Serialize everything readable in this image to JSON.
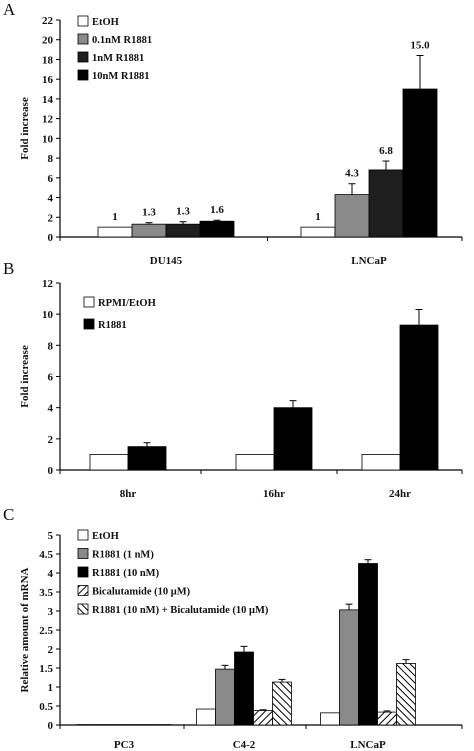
{
  "colors": {
    "white": "#ffffff",
    "gray": "#8a8a8a",
    "dark": "#1e1e1e",
    "black": "#000000"
  },
  "chart_data": [
    {
      "panel": "A",
      "type": "bar",
      "ylabel": "Fold increase",
      "ylim": [
        0,
        22
      ],
      "yticks": [
        0,
        2,
        4,
        6,
        8,
        10,
        12,
        14,
        16,
        18,
        20,
        22
      ],
      "categories": [
        "DU145",
        "LNCaP"
      ],
      "legend_position": "top-left",
      "series": [
        {
          "name": "EtOH",
          "fill": "white",
          "values": [
            1,
            1
          ],
          "errors": [
            0,
            0
          ],
          "labels": [
            "1",
            "1"
          ]
        },
        {
          "name": "0.1nM R1881",
          "fill": "gray",
          "values": [
            1.3,
            4.3
          ],
          "errors": [
            0.15,
            1.1
          ],
          "labels": [
            "1.3",
            "4.3"
          ]
        },
        {
          "name": "1nM R1881",
          "fill": "dark",
          "values": [
            1.3,
            6.8
          ],
          "errors": [
            0.25,
            0.9
          ],
          "labels": [
            "1.3",
            "6.8"
          ]
        },
        {
          "name": "10nM R1881",
          "fill": "black",
          "values": [
            1.6,
            15.0
          ],
          "errors": [
            0.1,
            3.4
          ],
          "labels": [
            "1.6",
            "15.0"
          ]
        }
      ]
    },
    {
      "panel": "B",
      "type": "bar",
      "ylabel": "Fold increase",
      "ylim": [
        0,
        12
      ],
      "yticks": [
        0,
        2,
        4,
        6,
        8,
        10,
        12
      ],
      "categories": [
        "8hr",
        "16hr",
        "24hr"
      ],
      "legend_position": "top-left",
      "series": [
        {
          "name": "RPMI/EtOH",
          "fill": "white",
          "values": [
            1,
            1,
            1
          ],
          "errors": [
            0,
            0,
            0
          ]
        },
        {
          "name": "R1881",
          "fill": "black",
          "values": [
            1.5,
            4.0,
            9.3
          ],
          "errors": [
            0.25,
            0.45,
            1.0
          ]
        }
      ]
    },
    {
      "panel": "C",
      "type": "bar",
      "ylabel": "Relative amount of mRNA",
      "ylim": [
        0,
        5
      ],
      "yticks": [
        0,
        0.5,
        1,
        1.5,
        2,
        2.5,
        3,
        3.5,
        4,
        4.5,
        5
      ],
      "categories": [
        "PC3",
        "C4-2",
        "LNCaP"
      ],
      "legend_position": "top-left",
      "series": [
        {
          "name": "EtOH",
          "fill": "white",
          "values": [
            0.01,
            0.42,
            0.32
          ],
          "errors": [
            0,
            0,
            0
          ]
        },
        {
          "name": "R1881 (1 nM)",
          "fill": "gray",
          "values": [
            0.01,
            1.47,
            3.03
          ],
          "errors": [
            0,
            0.1,
            0.15
          ]
        },
        {
          "name": "R1881 (10 nM)",
          "fill": "black",
          "values": [
            0.01,
            1.92,
            4.25
          ],
          "errors": [
            0,
            0.15,
            0.1
          ]
        },
        {
          "name": "Bicalutamide (10 μM)",
          "fill": "hatch-fwd",
          "values": [
            0.01,
            0.38,
            0.34
          ],
          "errors": [
            0,
            0.02,
            0.03
          ]
        },
        {
          "name": "R1881 (10 nM) + Bicalutamide (10 μM)",
          "fill": "hatch-back",
          "values": [
            0.01,
            1.13,
            1.62
          ],
          "errors": [
            0,
            0.07,
            0.1
          ]
        }
      ]
    }
  ]
}
